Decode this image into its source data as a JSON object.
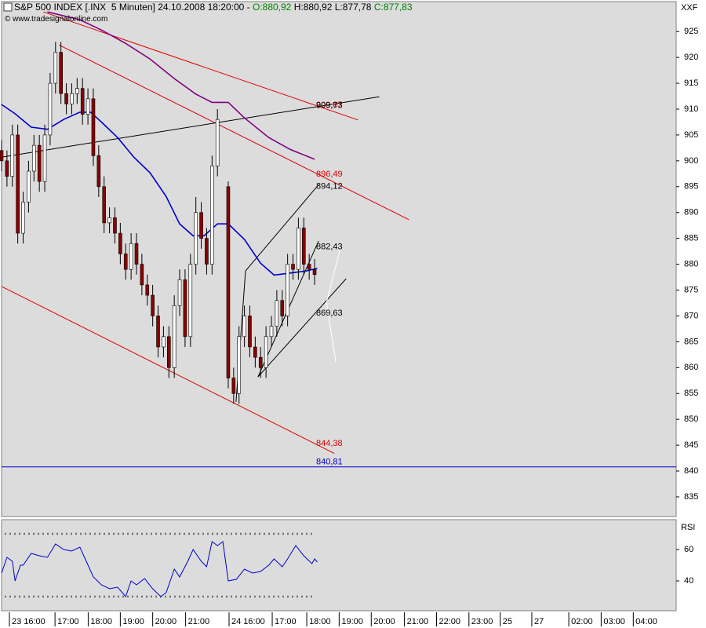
{
  "chart_data": [
    {
      "type": "candlestick",
      "title": "S&P 500 INDEX [.INX  5 Minuten] 24.10.2008 18:20:00 -",
      "open_label": "O:880,92",
      "high_label": "H:880,92",
      "low_label": "L:877,78",
      "close_label": "C:877,83",
      "copyright": "© www.tradesignalonline.com",
      "symbol": "XXF",
      "up_color": "#ffffff",
      "down_color": "#8b0000",
      "background": "#dcdcdc",
      "xlim": [
        0,
        250
      ],
      "ylim": [
        831.2,
        930.8
      ],
      "yticks": [
        835,
        840,
        845,
        850,
        855,
        860,
        865,
        870,
        875,
        880,
        885,
        890,
        895,
        900,
        905,
        910,
        915,
        920,
        925
      ],
      "xticks": [
        {
          "value": 2.9,
          "label": "23 16:00"
        },
        {
          "value": 19.8,
          "label": "17:00"
        },
        {
          "value": 32.1,
          "label": "18:00"
        },
        {
          "value": 44,
          "label": "19:00"
        },
        {
          "value": 56,
          "label": "20:00"
        },
        {
          "value": 68.2,
          "label": "21:00"
        },
        {
          "value": 84.3,
          "label": "24 16:00"
        },
        {
          "value": 100.3,
          "label": "17:00"
        },
        {
          "value": 113.1,
          "label": "18:00"
        },
        {
          "value": 125.1,
          "label": "19:00"
        },
        {
          "value": 137,
          "label": "20:00"
        },
        {
          "value": 149.3,
          "label": "21:00"
        },
        {
          "value": 161.2,
          "label": "22:00"
        },
        {
          "value": 173.2,
          "label": "23:00"
        },
        {
          "value": 184.8,
          "label": "25"
        },
        {
          "value": 196.5,
          "label": "27"
        },
        {
          "value": 210.2,
          "label": "02:00"
        },
        {
          "value": 222.2,
          "label": "03:00"
        },
        {
          "value": 234.1,
          "label": "04:00"
        }
      ],
      "x": [
        0,
        2,
        4,
        6,
        8,
        10,
        12,
        14,
        16,
        18,
        20,
        22,
        24,
        26,
        28,
        30,
        32,
        34,
        36,
        38,
        40,
        42,
        44,
        46,
        48,
        50,
        52,
        54,
        56,
        58,
        60,
        62,
        64,
        66,
        68,
        70,
        72,
        74,
        76,
        78,
        80,
        84,
        86,
        88,
        90,
        92,
        94,
        96,
        98,
        100,
        102,
        104,
        106,
        108,
        110,
        112,
        114,
        116
      ],
      "open": [
        902,
        900,
        897,
        905,
        886,
        892,
        898,
        903,
        896,
        905,
        915,
        921,
        913,
        911,
        913,
        914,
        909,
        912,
        901,
        895,
        888,
        889,
        886,
        882,
        879,
        884,
        880,
        876,
        874,
        870,
        864,
        866,
        860,
        872,
        877,
        866,
        880,
        890,
        885,
        880,
        899,
        895,
        858,
        855,
        866,
        870,
        864,
        862,
        860,
        866,
        868,
        873,
        870,
        880,
        879,
        887,
        880,
        879
      ],
      "high": [
        904,
        902,
        907,
        907,
        894,
        900,
        905,
        905,
        907,
        917,
        923,
        923,
        915,
        915,
        916,
        916,
        914,
        914,
        903,
        897,
        891,
        891,
        888,
        884,
        886,
        886,
        882,
        878,
        876,
        872,
        868,
        868,
        874,
        879,
        879,
        882,
        893,
        892,
        887,
        901,
        910,
        896,
        860,
        868,
        872,
        872,
        866,
        864,
        868,
        870,
        875,
        875,
        882,
        882,
        889,
        889,
        882,
        881
      ],
      "low": [
        898,
        895,
        895,
        884,
        884,
        890,
        896,
        894,
        894,
        903,
        913,
        911,
        909,
        909,
        911,
        907,
        907,
        899,
        893,
        886,
        886,
        884,
        880,
        877,
        877,
        878,
        874,
        872,
        868,
        862,
        862,
        858,
        858,
        870,
        864,
        864,
        878,
        883,
        878,
        878,
        897,
        856,
        853,
        853,
        864,
        862,
        860,
        858,
        858,
        864,
        866,
        868,
        868,
        877,
        877,
        878,
        877,
        876
      ],
      "close": [
        900,
        897,
        905,
        886,
        892,
        898,
        903,
        896,
        905,
        915,
        921,
        913,
        911,
        913,
        914,
        909,
        912,
        901,
        895,
        888,
        889,
        886,
        882,
        879,
        884,
        880,
        876,
        874,
        870,
        864,
        866,
        860,
        872,
        877,
        866,
        880,
        890,
        885,
        880,
        899,
        908,
        858,
        855,
        866,
        870,
        864,
        862,
        860,
        866,
        868,
        873,
        870,
        880,
        879,
        887,
        880,
        879,
        878
      ],
      "series": [
        {
          "color": "#0000cc",
          "x": [
            0,
            5,
            11,
            17,
            23,
            29,
            33,
            37,
            43,
            49,
            55,
            61,
            66,
            71,
            75,
            80,
            84,
            90,
            96,
            101,
            107,
            113,
            117
          ],
          "values": [
            910.9,
            909.1,
            906.5,
            906.1,
            908.0,
            909.4,
            909.4,
            907.5,
            904.5,
            900.7,
            897.7,
            893.1,
            887.8,
            885.5,
            885.5,
            887.8,
            887.8,
            884.8,
            880.2,
            877.9,
            878.3,
            878.7,
            879.2
          ]
        },
        {
          "color": "#800080",
          "x": [
            17,
            29,
            37,
            46,
            55,
            64,
            72,
            78,
            84,
            90,
            99,
            107,
            116
          ],
          "values": [
            928.8,
            927.3,
            925.3,
            922.7,
            919.7,
            915.9,
            912.9,
            911.3,
            911.3,
            908.3,
            904.5,
            902.2,
            900.3
          ]
        }
      ],
      "trendlines": [
        {
          "color": "#e00000",
          "x": [
            15.5,
            132.1
          ],
          "y": [
            928.8,
            907.9
          ]
        },
        {
          "color": "#e00000",
          "x": [
            21.3,
            151.0
          ],
          "y": [
            922.4,
            888.6
          ]
        },
        {
          "color": "#e00000",
          "x": [
            0,
            123.3
          ],
          "y": [
            875.7,
            843.4
          ]
        },
        {
          "color": "#000000",
          "x": [
            0,
            140
          ],
          "y": [
            900.7,
            912.4
          ]
        },
        {
          "color": "#000000",
          "x": [
            86.9,
            90.4
          ],
          "y": [
            853.4,
            878.7
          ]
        },
        {
          "color": "#000000",
          "x": [
            90.4,
            117.5
          ],
          "y": [
            878.7,
            895.4
          ]
        },
        {
          "color": "#000000",
          "x": [
            95.0,
            127.7
          ],
          "y": [
            858.2,
            877.2
          ]
        },
        {
          "color": "#000000",
          "x": [
            95.0,
            117.5
          ],
          "y": [
            858.2,
            884.5
          ]
        },
        {
          "color": "#ffffff",
          "x": [
            125.4,
            120.4,
            123.9
          ],
          "y": [
            882.8,
            872.6,
            861.0
          ]
        }
      ],
      "hlines": [
        {
          "value": 840.81,
          "color": "#0000cc"
        }
      ],
      "price_labels": {
        "values": [
          909.87,
          909.73,
          896.49,
          894.12,
          882.43,
          869.63,
          844.38,
          840.81
        ],
        "value_labels": [
          "909,87",
          "909,73",
          "896,49",
          "894,12",
          "882,43",
          "869,63",
          "844,38",
          "840,81"
        ],
        "colors": [
          "#e00000",
          "#000000",
          "#e00000",
          "#000000",
          "#000000",
          "#000000",
          "#e00000",
          "#0000cc"
        ]
      }
    },
    {
      "type": "line",
      "title": "RSI",
      "color": "#0000cc",
      "background": "#dcdcdc",
      "xlim": [
        0,
        250
      ],
      "ylim": [
        21,
        79
      ],
      "yticks": [
        40,
        60
      ],
      "levels": [
        70,
        30
      ],
      "x": [
        0,
        2,
        4,
        5,
        7,
        8,
        11,
        14,
        17,
        20,
        23,
        26,
        29,
        31,
        34,
        37,
        40,
        43,
        46,
        48,
        50,
        53,
        56,
        59,
        61,
        64,
        66,
        69,
        71,
        74,
        76,
        78,
        80,
        82,
        84,
        87,
        90,
        93,
        96,
        99,
        101,
        104,
        106,
        109,
        112,
        115,
        116,
        117
      ],
      "values": [
        45,
        55,
        52.5,
        40,
        50,
        50,
        57.5,
        56,
        55,
        63.5,
        60,
        59,
        61.5,
        54,
        42.5,
        37.5,
        35,
        36,
        30,
        40,
        37.5,
        41.5,
        35,
        30,
        32.5,
        47.5,
        42.5,
        52.5,
        60,
        52.5,
        49,
        65,
        62.5,
        65,
        40,
        41,
        47.5,
        45,
        46,
        50,
        54,
        49,
        54,
        62.5,
        56,
        51,
        54,
        52
      ]
    }
  ]
}
